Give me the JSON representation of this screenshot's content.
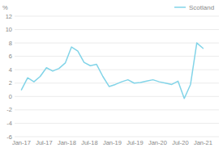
{
  "chart_data": {
    "type": "line",
    "y_label": "%",
    "xticks": [
      {
        "value": 0,
        "label": "Jan-17"
      },
      {
        "value": 1,
        "label": "Jul-17"
      },
      {
        "value": 2,
        "label": "Jan-18"
      },
      {
        "value": 3,
        "label": "Jul-18"
      },
      {
        "value": 4,
        "label": "Jan-19"
      },
      {
        "value": 5,
        "label": "Jul-19"
      },
      {
        "value": 6,
        "label": "Jan-20"
      },
      {
        "value": 7,
        "label": "Jul-20"
      },
      {
        "value": 8,
        "label": "Jan-21"
      }
    ],
    "xlim": [
      -0.3,
      8.7
    ],
    "series": [
      {
        "name": "Scotland",
        "color": "#82d4e8",
        "values": [
          1.0,
          2.8,
          2.2,
          3.0,
          4.3,
          3.8,
          4.2,
          5.0,
          7.4,
          6.8,
          5.1,
          4.6,
          4.8,
          3.0,
          1.5,
          1.8,
          2.2,
          2.5,
          2.0,
          2.1,
          2.3,
          2.5,
          2.2,
          2.0,
          1.8,
          2.3,
          -0.3,
          1.8,
          8.0,
          7.2
        ]
      }
    ],
    "ylim": [
      -6,
      12
    ],
    "yticks": [
      -6,
      -4,
      -2,
      0,
      2,
      4,
      6,
      8,
      10,
      12
    ],
    "grid": true,
    "legend": "top right"
  }
}
